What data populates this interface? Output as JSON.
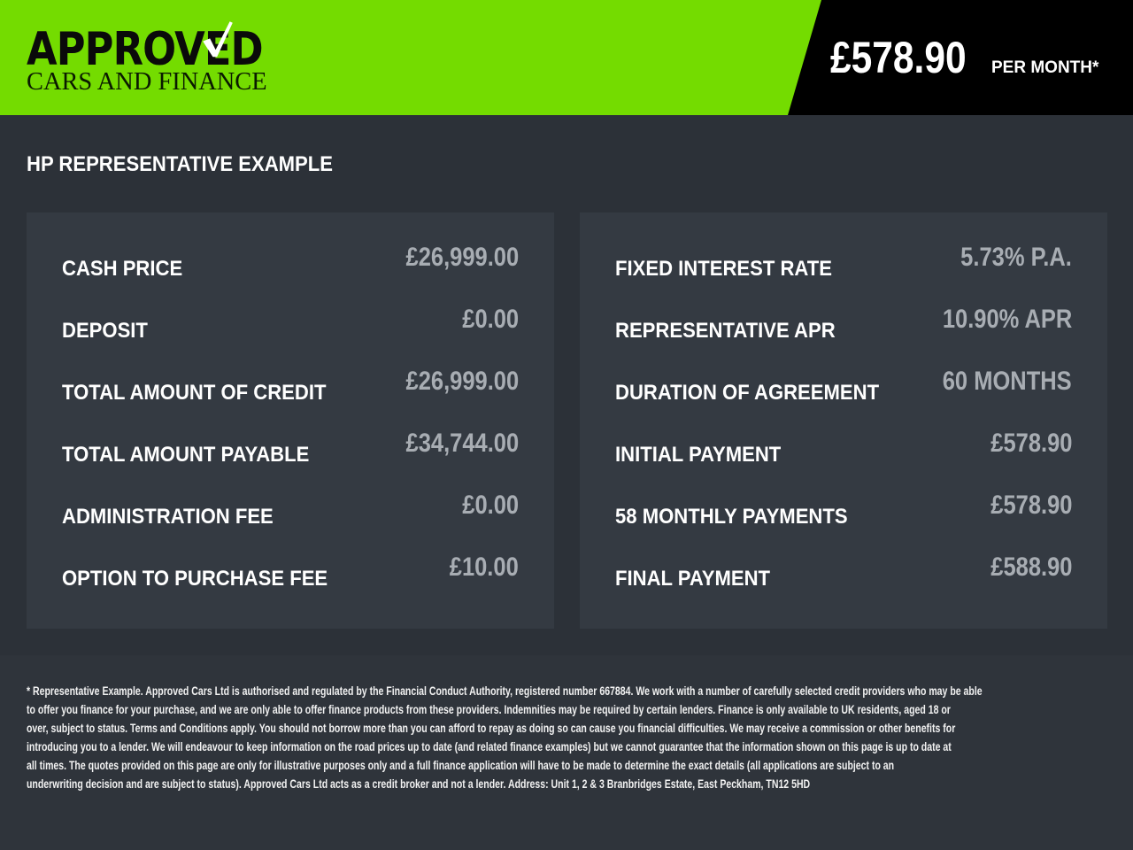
{
  "header": {
    "logo_main": "APPROVED",
    "logo_sub": "CARS AND FINANCE",
    "monthly_price": "£578.90",
    "per_month_label": "PER MONTH*",
    "brand_color": "#74dc00"
  },
  "section_title": "HP REPRESENTATIVE EXAMPLE",
  "left_panel": [
    {
      "label": "CASH PRICE",
      "value": "£26,999.00"
    },
    {
      "label": "DEPOSIT",
      "value": "£0.00"
    },
    {
      "label": "TOTAL AMOUNT OF CREDIT",
      "value": "£26,999.00"
    },
    {
      "label": "TOTAL AMOUNT PAYABLE",
      "value": "£34,744.00"
    },
    {
      "label": "ADMINISTRATION FEE",
      "value": "£0.00"
    },
    {
      "label": "OPTION TO PURCHASE FEE",
      "value": "£10.00"
    }
  ],
  "right_panel": [
    {
      "label": "FIXED INTEREST RATE",
      "value": "5.73% P.A."
    },
    {
      "label": "REPRESENTATIVE APR",
      "value": "10.90% APR"
    },
    {
      "label": "DURATION OF AGREEMENT",
      "value": "60 MONTHS"
    },
    {
      "label": "INITIAL PAYMENT",
      "value": "£578.90"
    },
    {
      "label": "58 MONTHLY PAYMENTS",
      "value": "£578.90"
    },
    {
      "label": "FINAL PAYMENT",
      "value": "£588.90"
    }
  ],
  "disclaimer_lines": [
    "* Representative Example. Approved Cars Ltd is authorised and regulated by the Financial Conduct Authority, registered number 667884. We work with a number of carefully selected credit providers who may be able",
    "to offer you finance for your purchase, and we are only able to offer finance products from these providers. Indemnities may be required by certain lenders. Finance is only available to UK residents, aged 18 or",
    "over, subject to status. Terms and Conditions apply. You should not borrow more than you can afford to repay as doing so can cause you financial difficulties. We may receive a commission or other benefits for",
    "introducing you to a lender. We will endeavour to keep information on the road prices up to date (and related finance examples) but we cannot guarantee that the information shown on this page is up to date at",
    "all times. The quotes provided on this page are only for illustrative purposes only and a full finance application will have to be made to determine the exact details (all applications are subject to an",
    "underwriting decision and are subject to status). Approved Cars Ltd acts as a credit broker and not a lender. Address: Unit 1, 2 & 3 Branbridges Estate, East Peckham, TN12 5HD"
  ]
}
